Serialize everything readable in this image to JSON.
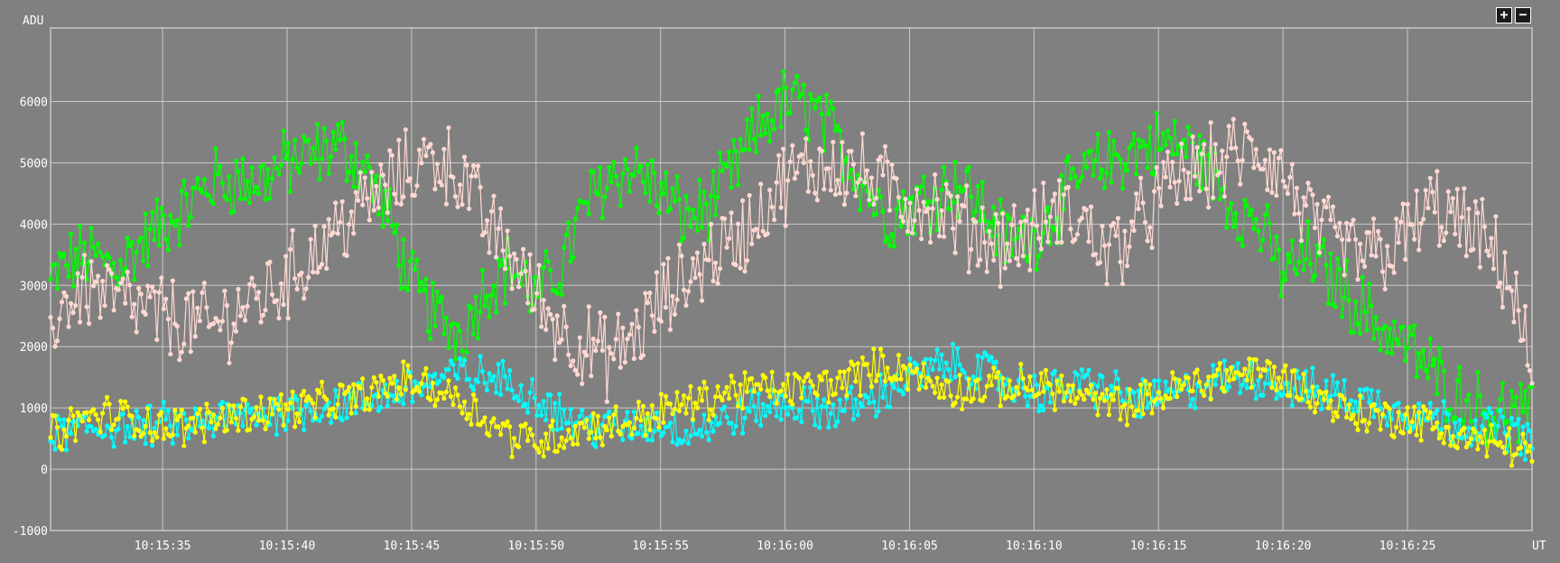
{
  "toolbar": {
    "zoom_in": "+",
    "zoom_out": "−"
  },
  "chart_data": {
    "type": "line",
    "ylabel": "ADU",
    "xlabel": "UT",
    "xlim": [
      "10:15:30.5",
      "10:16:30.0"
    ],
    "ylim": [
      -1000,
      7200
    ],
    "yticks": [
      -1000,
      0,
      1000,
      2000,
      3000,
      4000,
      5000,
      6000
    ],
    "xticks": [
      "10:15:35",
      "10:15:40",
      "10:15:45",
      "10:15:50",
      "10:15:55",
      "10:16:00",
      "10:16:05",
      "10:16:10",
      "10:16:15",
      "10:16:20",
      "10:16:25"
    ],
    "grid": true,
    "background": "#808080",
    "grid_color": "#c8c8c8",
    "text_color": "#ffffff",
    "points_per_second": 11,
    "series": [
      {
        "color": "#00ff00",
        "times": [
          "10:15:30.5",
          "10:15:31",
          "10:15:32",
          "10:15:33",
          "10:15:34",
          "10:15:35",
          "10:15:36",
          "10:15:37",
          "10:15:38",
          "10:15:39",
          "10:15:40",
          "10:15:41",
          "10:15:42",
          "10:15:43",
          "10:15:44",
          "10:15:45",
          "10:15:46",
          "10:15:47",
          "10:15:48",
          "10:15:49",
          "10:15:50",
          "10:15:51",
          "10:15:52",
          "10:15:53",
          "10:15:54",
          "10:15:55",
          "10:15:56",
          "10:15:57",
          "10:15:58",
          "10:15:59",
          "10:16:00",
          "10:16:01",
          "10:16:02",
          "10:16:03",
          "10:16:04",
          "10:16:05",
          "10:16:06",
          "10:16:07",
          "10:16:08",
          "10:16:09",
          "10:16:10",
          "10:16:11",
          "10:16:12",
          "10:16:13",
          "10:16:14",
          "10:16:15",
          "10:16:16",
          "10:16:17",
          "10:16:18",
          "10:16:19",
          "10:16:20",
          "10:16:21",
          "10:16:22",
          "10:16:23",
          "10:16:24",
          "10:16:25",
          "10:16:26",
          "10:16:27",
          "10:16:28",
          "10:16:29",
          "10:16:30"
        ],
        "values": [
          3000,
          3300,
          3500,
          3300,
          3600,
          4000,
          4300,
          4700,
          4700,
          4700,
          5000,
          5100,
          5300,
          5000,
          4200,
          3000,
          2500,
          2200,
          3000,
          3300,
          2800,
          3300,
          4300,
          4800,
          4900,
          4500,
          4100,
          4300,
          4900,
          5600,
          6000,
          5900,
          5400,
          4800,
          4100,
          4300,
          4500,
          4700,
          4200,
          3700,
          3800,
          4300,
          4800,
          5000,
          5200,
          5300,
          5300,
          4900,
          4300,
          4000,
          3200,
          3500,
          3100,
          2700,
          2300,
          2000,
          1600,
          1200,
          1000,
          900,
          800
        ],
        "spread": 500
      },
      {
        "color": "#ffd8d2",
        "times": [
          "10:15:30.5",
          "10:15:31",
          "10:15:32",
          "10:15:33",
          "10:15:34",
          "10:15:35",
          "10:15:36",
          "10:15:37",
          "10:15:38",
          "10:15:39",
          "10:15:40",
          "10:15:41",
          "10:15:42",
          "10:15:43",
          "10:15:44",
          "10:15:45",
          "10:15:46",
          "10:15:47",
          "10:15:48",
          "10:15:49",
          "10:15:50",
          "10:15:51",
          "10:15:52",
          "10:15:53",
          "10:15:54",
          "10:15:55",
          "10:15:56",
          "10:15:57",
          "10:15:58",
          "10:15:59",
          "10:16:00",
          "10:16:01",
          "10:16:02",
          "10:16:03",
          "10:16:04",
          "10:16:05",
          "10:16:06",
          "10:16:07",
          "10:16:08",
          "10:16:09",
          "10:16:10",
          "10:16:11",
          "10:16:12",
          "10:16:13",
          "10:16:14",
          "10:16:15",
          "10:16:16",
          "10:16:17",
          "10:16:18",
          "10:16:19",
          "10:16:20",
          "10:16:21",
          "10:16:22",
          "10:16:23",
          "10:16:24",
          "10:16:25",
          "10:16:26",
          "10:16:27",
          "10:16:28",
          "10:16:29",
          "10:16:30"
        ],
        "values": [
          2300,
          2700,
          3000,
          2800,
          2600,
          2500,
          2400,
          2300,
          2600,
          2800,
          3100,
          3500,
          3900,
          4300,
          4600,
          4900,
          5100,
          4800,
          4000,
          3500,
          2800,
          2300,
          2000,
          1800,
          2200,
          2700,
          3100,
          3500,
          3700,
          4200,
          4700,
          4900,
          5000,
          4800,
          4600,
          4400,
          4300,
          4000,
          3800,
          3700,
          3900,
          4200,
          4000,
          3500,
          3900,
          4400,
          4800,
          4900,
          5100,
          5200,
          4800,
          4100,
          3700,
          3500,
          3500,
          3800,
          4300,
          4000,
          3700,
          3200,
          1500
        ],
        "spread": 600
      },
      {
        "color": "#00ffff",
        "times": [
          "10:15:30.5",
          "10:15:31",
          "10:15:32",
          "10:15:33",
          "10:15:34",
          "10:15:35",
          "10:15:36",
          "10:15:37",
          "10:15:38",
          "10:15:39",
          "10:15:40",
          "10:15:41",
          "10:15:42",
          "10:15:43",
          "10:15:44",
          "10:15:45",
          "10:15:46",
          "10:15:47",
          "10:15:48",
          "10:15:49",
          "10:15:50",
          "10:15:51",
          "10:15:52",
          "10:15:53",
          "10:15:54",
          "10:15:55",
          "10:15:56",
          "10:15:57",
          "10:15:58",
          "10:15:59",
          "10:16:00",
          "10:16:01",
          "10:16:02",
          "10:16:03",
          "10:16:04",
          "10:16:05",
          "10:16:06",
          "10:16:07",
          "10:16:08",
          "10:16:09",
          "10:16:10",
          "10:16:11",
          "10:16:12",
          "10:16:13",
          "10:16:14",
          "10:16:15",
          "10:16:16",
          "10:16:17",
          "10:16:18",
          "10:16:19",
          "10:16:20",
          "10:16:21",
          "10:16:22",
          "10:16:23",
          "10:16:24",
          "10:16:25",
          "10:16:26",
          "10:16:27",
          "10:16:28",
          "10:16:29",
          "10:16:30"
        ],
        "values": [
          550,
          600,
          650,
          700,
          650,
          750,
          700,
          800,
          850,
          900,
          950,
          1000,
          1050,
          1100,
          1200,
          1350,
          1450,
          1550,
          1500,
          1400,
          1200,
          900,
          700,
          650,
          700,
          750,
          650,
          700,
          850,
          1000,
          1050,
          1000,
          950,
          1050,
          1250,
          1500,
          1650,
          1700,
          1600,
          1400,
          1250,
          1300,
          1400,
          1300,
          1150,
          1150,
          1250,
          1400,
          1500,
          1500,
          1350,
          1300,
          1250,
          1150,
          1050,
          950,
          850,
          750,
          700,
          650,
          450
        ],
        "spread": 300
      },
      {
        "color": "#ffff00",
        "times": [
          "10:15:30.5",
          "10:15:31",
          "10:15:32",
          "10:15:33",
          "10:15:34",
          "10:15:35",
          "10:15:36",
          "10:15:37",
          "10:15:38",
          "10:15:39",
          "10:15:40",
          "10:15:41",
          "10:15:42",
          "10:15:43",
          "10:15:44",
          "10:15:45",
          "10:15:46",
          "10:15:47",
          "10:15:48",
          "10:15:49",
          "10:15:50",
          "10:15:51",
          "10:15:52",
          "10:15:53",
          "10:15:54",
          "10:15:55",
          "10:15:56",
          "10:15:57",
          "10:15:58",
          "10:15:59",
          "10:16:00",
          "10:16:01",
          "10:16:02",
          "10:16:03",
          "10:16:04",
          "10:16:05",
          "10:16:06",
          "10:16:07",
          "10:16:08",
          "10:16:09",
          "10:16:10",
          "10:16:11",
          "10:16:12",
          "10:16:13",
          "10:16:14",
          "10:16:15",
          "10:16:16",
          "10:16:17",
          "10:16:18",
          "10:16:19",
          "10:16:20",
          "10:16:21",
          "10:16:22",
          "10:16:23",
          "10:16:24",
          "10:16:25",
          "10:16:26",
          "10:16:27",
          "10:16:28",
          "10:16:29",
          "10:16:30"
        ],
        "values": [
          550,
          650,
          850,
          900,
          800,
          700,
          700,
          800,
          900,
          950,
          1000,
          1050,
          1100,
          1200,
          1350,
          1450,
          1300,
          1150,
          800,
          550,
          450,
          550,
          700,
          700,
          800,
          950,
          1050,
          1150,
          1300,
          1300,
          1300,
          1350,
          1400,
          1550,
          1700,
          1600,
          1350,
          1300,
          1300,
          1350,
          1400,
          1300,
          1150,
          1050,
          1050,
          1200,
          1350,
          1450,
          1550,
          1600,
          1500,
          1250,
          1050,
          900,
          850,
          850,
          700,
          550,
          450,
          400,
          300
        ],
        "spread": 280
      }
    ]
  }
}
